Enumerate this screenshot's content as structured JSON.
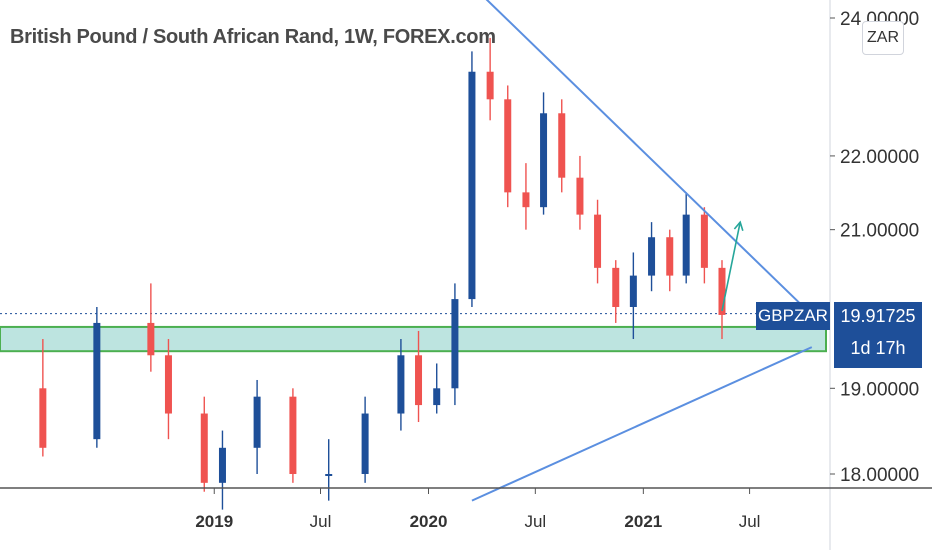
{
  "header": {
    "title": "British Pound / South African Rand, 1W, FOREX.com"
  },
  "currency_button": "ZAR",
  "price_label": {
    "symbol": "GBPZAR",
    "price": "19.91725",
    "countdown": "1d 17h"
  },
  "colors": {
    "up": "#1e4f99",
    "down": "#ef5350",
    "trend": "#5b8fe0",
    "zone_fill": "#b2dfdb",
    "zone_border": "#4caf50",
    "arrow": "#26a69a"
  },
  "chart_data": {
    "type": "candlestick",
    "title": "British Pound / South African Rand, 1W, FOREX.com",
    "ylim": [
      17.7,
      24.3
    ],
    "y_ticks": [
      "24.00000",
      "22.00000",
      "21.00000",
      "19.00000",
      "18.00000"
    ],
    "y_tick_values": [
      24,
      22,
      21,
      19,
      18
    ],
    "x_ticks": [
      "2019",
      "Jul",
      "2020",
      "Jul",
      "2021",
      "Jul"
    ],
    "x_tick_years": [
      true,
      false,
      true,
      false,
      true,
      false
    ],
    "last_price": 19.91725,
    "series": [
      {
        "date": "2018-03",
        "o": 19.0,
        "h": 19.6,
        "l": 18.2,
        "c": 18.3
      },
      {
        "date": "2018-06",
        "o": 18.4,
        "h": 20.0,
        "l": 18.3,
        "c": 19.8
      },
      {
        "date": "2018-09",
        "o": 19.8,
        "h": 20.3,
        "l": 19.2,
        "c": 19.4
      },
      {
        "date": "2018-10",
        "o": 19.4,
        "h": 19.6,
        "l": 18.4,
        "c": 18.7
      },
      {
        "date": "2018-12",
        "o": 18.7,
        "h": 18.9,
        "l": 17.8,
        "c": 17.9
      },
      {
        "date": "2019-01",
        "o": 17.9,
        "h": 18.5,
        "l": 17.6,
        "c": 18.3
      },
      {
        "date": "2019-03",
        "o": 18.3,
        "h": 19.1,
        "l": 18.0,
        "c": 18.9
      },
      {
        "date": "2019-05",
        "o": 18.9,
        "h": 19.0,
        "l": 17.9,
        "c": 18.0
      },
      {
        "date": "2019-07",
        "o": 18.0,
        "h": 18.4,
        "l": 17.7,
        "c": 18.0
      },
      {
        "date": "2019-09",
        "o": 18.0,
        "h": 18.9,
        "l": 17.9,
        "c": 18.7
      },
      {
        "date": "2019-11",
        "o": 18.7,
        "h": 19.6,
        "l": 18.5,
        "c": 19.4
      },
      {
        "date": "2019-12",
        "o": 19.4,
        "h": 19.7,
        "l": 18.6,
        "c": 18.8
      },
      {
        "date": "2020-01",
        "o": 18.8,
        "h": 19.3,
        "l": 18.7,
        "c": 19.0
      },
      {
        "date": "2020-02",
        "o": 19.0,
        "h": 20.3,
        "l": 18.8,
        "c": 20.1
      },
      {
        "date": "2020-03",
        "o": 20.1,
        "h": 23.5,
        "l": 20.0,
        "c": 23.2
      },
      {
        "date": "2020-04",
        "o": 23.2,
        "h": 23.7,
        "l": 22.5,
        "c": 22.8
      },
      {
        "date": "2020-05",
        "o": 22.8,
        "h": 23.0,
        "l": 21.3,
        "c": 21.5
      },
      {
        "date": "2020-06",
        "o": 21.5,
        "h": 21.9,
        "l": 21.0,
        "c": 21.3
      },
      {
        "date": "2020-07",
        "o": 21.3,
        "h": 22.9,
        "l": 21.2,
        "c": 22.6
      },
      {
        "date": "2020-08",
        "o": 22.6,
        "h": 22.8,
        "l": 21.5,
        "c": 21.7
      },
      {
        "date": "2020-09",
        "o": 21.7,
        "h": 22.0,
        "l": 21.0,
        "c": 21.2
      },
      {
        "date": "2020-10",
        "o": 21.2,
        "h": 21.4,
        "l": 20.3,
        "c": 20.5
      },
      {
        "date": "2020-11",
        "o": 20.5,
        "h": 20.6,
        "l": 19.8,
        "c": 20.0
      },
      {
        "date": "2020-12",
        "o": 20.0,
        "h": 20.7,
        "l": 19.6,
        "c": 20.4
      },
      {
        "date": "2021-01",
        "o": 20.4,
        "h": 21.1,
        "l": 20.2,
        "c": 20.9
      },
      {
        "date": "2021-02",
        "o": 20.9,
        "h": 21.0,
        "l": 20.2,
        "c": 20.4
      },
      {
        "date": "2021-03",
        "o": 20.4,
        "h": 21.5,
        "l": 20.3,
        "c": 21.2
      },
      {
        "date": "2021-04",
        "o": 21.2,
        "h": 21.3,
        "l": 20.3,
        "c": 20.5
      },
      {
        "date": "2021-05",
        "o": 20.5,
        "h": 20.6,
        "l": 19.6,
        "c": 19.9
      }
    ],
    "annotations": {
      "support_zone": [
        19.45,
        19.75
      ],
      "upper_trendline": [
        {
          "date": "2020-03",
          "y": 24.5
        },
        {
          "date": "2021-10",
          "y": 19.9
        }
      ],
      "lower_trendline": [
        {
          "date": "2020-03",
          "y": 17.7
        },
        {
          "date": "2021-10",
          "y": 19.5
        }
      ],
      "projection_arrow": [
        {
          "date": "2021-05",
          "y": 19.95
        },
        {
          "date": "2021-06",
          "y": 21.1
        }
      ]
    }
  }
}
